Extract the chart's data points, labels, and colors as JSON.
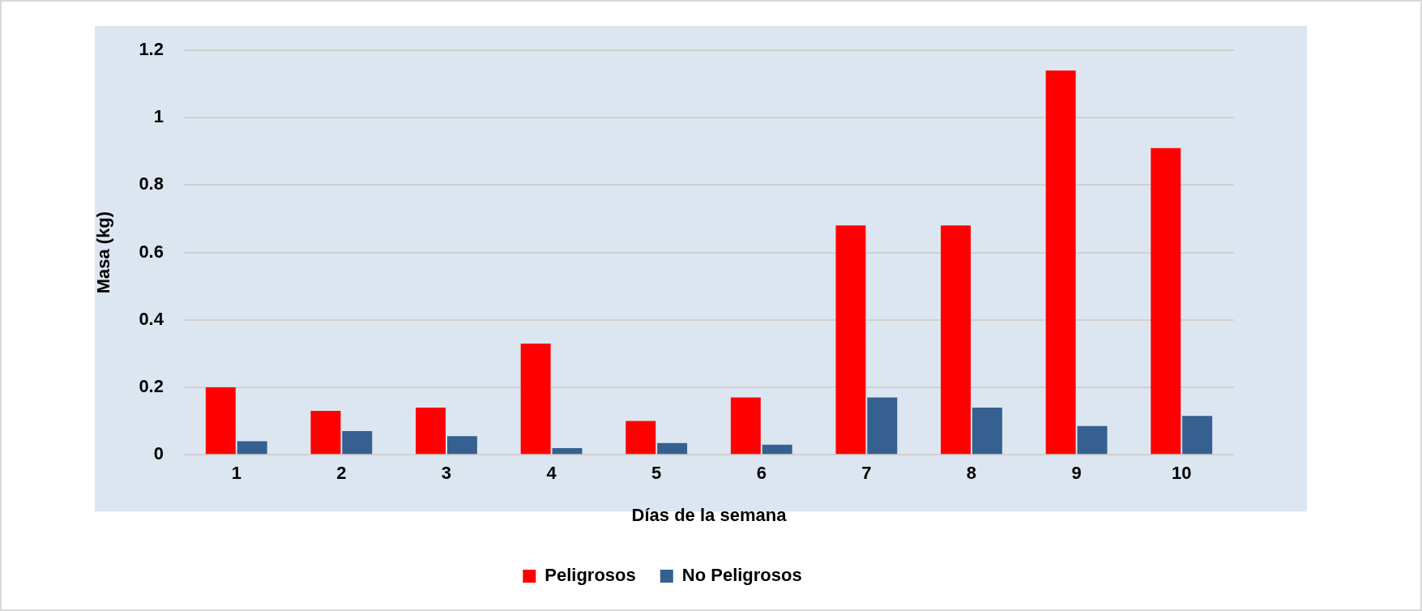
{
  "chart_data": {
    "type": "bar",
    "xlabel": "Días de la semana",
    "ylabel": "Masa (kg)",
    "categories": [
      "1",
      "2",
      "3",
      "4",
      "5",
      "6",
      "7",
      "8",
      "9",
      "10"
    ],
    "series": [
      {
        "name": "Peligrosos",
        "color": "#ff0000",
        "values": [
          0.2,
          0.13,
          0.14,
          0.33,
          0.1,
          0.17,
          0.68,
          0.68,
          1.14,
          0.91
        ]
      },
      {
        "name": "No Peligrosos",
        "color": "#35608f",
        "values": [
          0.04,
          0.07,
          0.055,
          0.02,
          0.035,
          0.03,
          0.17,
          0.14,
          0.085,
          0.115
        ]
      }
    ],
    "ylim": [
      0,
      1.2
    ],
    "yticks": [
      0,
      0.2,
      0.4,
      0.6,
      0.8,
      1,
      1.2
    ],
    "grid": "y",
    "legend": "bottom"
  }
}
